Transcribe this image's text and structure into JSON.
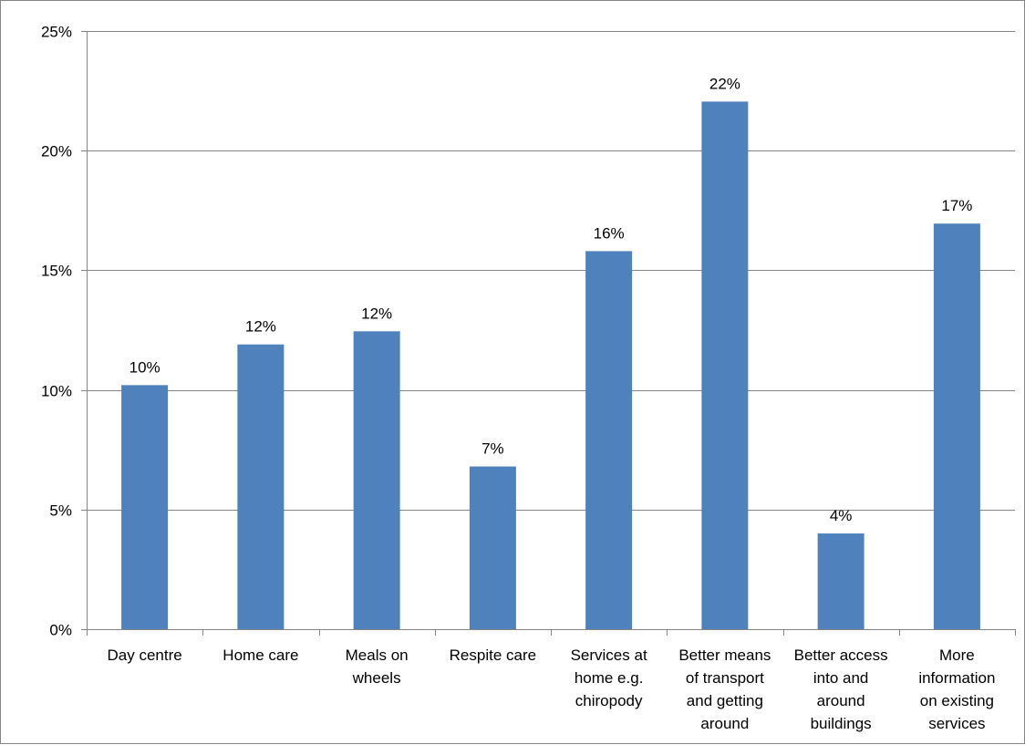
{
  "chart_data": {
    "type": "bar",
    "categories": [
      [
        "Day centre"
      ],
      [
        "Home care"
      ],
      [
        "Meals on",
        "wheels"
      ],
      [
        "Respite care"
      ],
      [
        "Services at",
        "home e.g.",
        "chiropody"
      ],
      [
        "Better means",
        "of transport",
        "and getting",
        "around"
      ],
      [
        "Better access",
        "into and",
        "around",
        "buildings"
      ],
      [
        "More",
        "information",
        "on existing",
        "services"
      ]
    ],
    "values": [
      10.2,
      11.9,
      12.45,
      6.8,
      15.8,
      22.05,
      4.0,
      16.95
    ],
    "data_labels": [
      "10%",
      "12%",
      "12%",
      "7%",
      "16%",
      "22%",
      "4%",
      "17%"
    ],
    "ylim": [
      0,
      25
    ],
    "yticks": [
      0,
      5,
      10,
      15,
      20,
      25
    ],
    "ytick_labels": [
      "0%",
      "5%",
      "10%",
      "15%",
      "20%",
      "25%"
    ],
    "grid": true,
    "bar_color": "#4f81bd",
    "grid_color": "#868686"
  }
}
